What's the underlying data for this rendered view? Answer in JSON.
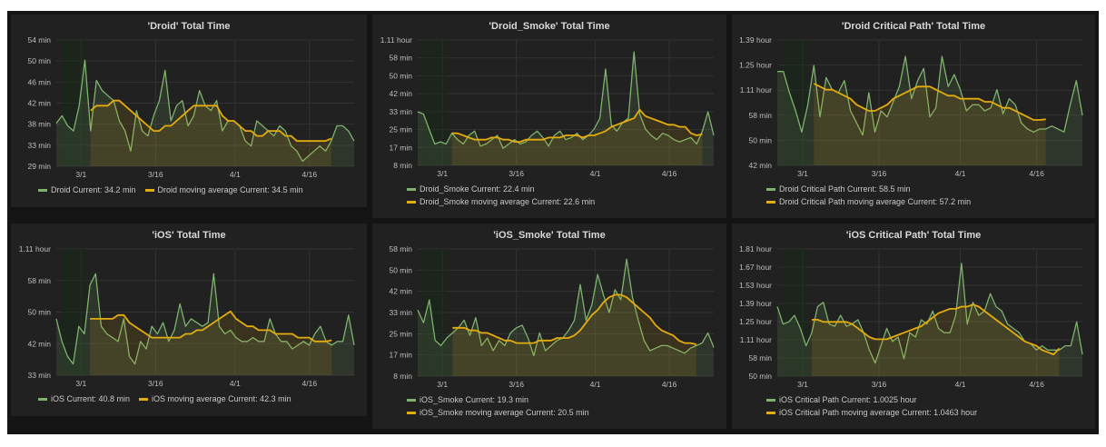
{
  "colors": {
    "series": "#7eb26d",
    "moving_average": "#e5ac0e"
  },
  "chart_data": [
    {
      "type": "line",
      "title": "'Droid' Total Time",
      "yticks": [
        "54 min",
        "50 min",
        "46 min",
        "42 min",
        "38 min",
        "33 min",
        "29 min"
      ],
      "ylim": [
        29,
        54
      ],
      "xticks": [
        {
          "label": "3/1",
          "x": 5
        },
        {
          "label": "3/16",
          "x": 20
        },
        {
          "label": "4/1",
          "x": 36
        },
        {
          "label": "4/16",
          "x": 51
        }
      ],
      "xlim": [
        0,
        60
      ],
      "series": [
        {
          "name": "Droid",
          "values": [
            37.5,
            39,
            37,
            36,
            41,
            50,
            36,
            46,
            44,
            43,
            42,
            38,
            36,
            32,
            40,
            36,
            35,
            39,
            42,
            48,
            38,
            41,
            42,
            37,
            39,
            44,
            41,
            40,
            42,
            36,
            38,
            38,
            37,
            34,
            33,
            38,
            37,
            36,
            35,
            37,
            36,
            33,
            32,
            30,
            31,
            32,
            33,
            32,
            34,
            37,
            37,
            36,
            34
          ]
        },
        {
          "name": "Droid moving average",
          "start_index": 6,
          "values": [
            40,
            41,
            41,
            41,
            42,
            42,
            41,
            40,
            39,
            38,
            37,
            36,
            36,
            37,
            37,
            38,
            39,
            40,
            41,
            41,
            41,
            41,
            41,
            39,
            38,
            38,
            37,
            36,
            36,
            35,
            35,
            36,
            36,
            36,
            35,
            35,
            34,
            34,
            34,
            34,
            34,
            34,
            34.5
          ]
        }
      ],
      "legend": [
        "Droid  Current: 34.2 min",
        "Droid moving average  Current: 34.5 min"
      ]
    },
    {
      "type": "line",
      "title": "'Droid_Smoke' Total Time",
      "yticks": [
        "1.11 hour",
        "58 min",
        "50 min",
        "42 min",
        "33 min",
        "25 min",
        "17 min",
        "8 min"
      ],
      "ylim": [
        8,
        66.6
      ],
      "xticks": [
        {
          "label": "3/1",
          "x": 5
        },
        {
          "label": "3/16",
          "x": 20
        },
        {
          "label": "4/1",
          "x": 36
        },
        {
          "label": "4/16",
          "x": 51
        }
      ],
      "xlim": [
        0,
        60
      ],
      "series": [
        {
          "name": "Droid_Smoke",
          "values": [
            33,
            32,
            25,
            18,
            19,
            18,
            23,
            20,
            18,
            22,
            24,
            17,
            18,
            20,
            22,
            16,
            18,
            20,
            18,
            19,
            22,
            24,
            21,
            17,
            22,
            24,
            20,
            21,
            23,
            20,
            22,
            25,
            30,
            53,
            27,
            24,
            28,
            30,
            61,
            32,
            25,
            22,
            20,
            23,
            22,
            20,
            19,
            20,
            21,
            18,
            24,
            33,
            22
          ]
        },
        {
          "name": "Droid_Smoke moving average",
          "start_index": 6,
          "values": [
            23,
            23,
            22,
            21,
            20,
            20,
            20,
            21,
            21,
            20,
            20,
            19,
            19,
            20,
            20,
            20,
            20,
            21,
            21,
            21,
            22,
            22,
            22,
            21,
            22,
            22,
            23,
            24,
            26,
            27,
            28,
            29,
            30,
            34,
            31,
            30,
            29,
            28,
            27,
            27,
            26,
            26,
            23,
            22,
            22.6
          ]
        }
      ],
      "legend": [
        "Droid_Smoke  Current: 22.4 min",
        "Droid_Smoke moving average  Current: 22.6 min"
      ]
    },
    {
      "type": "line",
      "title": "'Droid Critical Path' Total Time",
      "yticks": [
        "1.39 hour",
        "1.25 hour",
        "1.11 hour",
        "58 min",
        "50 min",
        "42 min"
      ],
      "ylim": [
        42,
        83.4
      ],
      "xticks": [
        {
          "label": "3/1",
          "x": 5
        },
        {
          "label": "3/16",
          "x": 20
        },
        {
          "label": "4/1",
          "x": 36
        },
        {
          "label": "4/16",
          "x": 51
        }
      ],
      "xlim": [
        0,
        60
      ],
      "series": [
        {
          "name": "Droid Critical Path",
          "values": [
            73,
            73,
            66,
            60,
            53,
            62,
            75,
            58,
            71,
            67,
            66,
            70,
            60,
            56,
            52,
            66,
            53,
            60,
            58,
            63,
            68,
            78,
            64,
            70,
            74,
            58,
            61,
            78,
            68,
            72,
            67,
            60,
            62,
            62,
            60,
            61,
            67,
            59,
            64,
            62,
            56,
            54,
            53,
            54,
            54,
            55,
            54,
            53,
            62,
            70,
            58.5
          ]
        },
        {
          "name": "Droid Critical Path moving average",
          "start_index": 6,
          "values": [
            69,
            68,
            67,
            67,
            66,
            65,
            64,
            62,
            61,
            60,
            60,
            61,
            62,
            64,
            65,
            66,
            67,
            68,
            68,
            68,
            67,
            66,
            65,
            65,
            64,
            64,
            64,
            64,
            63,
            63,
            62,
            61,
            61,
            60,
            59,
            58,
            57,
            57,
            57.2
          ]
        }
      ],
      "legend": [
        "Droid Critical Path  Current: 58.5 min",
        "Droid Critical Path moving average  Current: 57.2 min"
      ]
    },
    {
      "type": "line",
      "title": "'iOS' Total Time",
      "yticks": [
        "1.11 hour",
        "58 min",
        "50 min",
        "42 min",
        "33 min"
      ],
      "ylim": [
        33,
        66.6
      ],
      "xticks": [
        {
          "label": "3/1",
          "x": 5
        },
        {
          "label": "3/16",
          "x": 20
        },
        {
          "label": "4/1",
          "x": 36
        },
        {
          "label": "4/16",
          "x": 51
        }
      ],
      "xlim": [
        0,
        60
      ],
      "series": [
        {
          "name": "iOS",
          "values": [
            48,
            42,
            38,
            36,
            46,
            44,
            57,
            60,
            46,
            44,
            43,
            42,
            48,
            38,
            36,
            42,
            40,
            46,
            44,
            47,
            42,
            45,
            52,
            46,
            48,
            47,
            46,
            47,
            60,
            46,
            44,
            45,
            43,
            42,
            42,
            43,
            42,
            42,
            48,
            44,
            42,
            42,
            40,
            41,
            42,
            41,
            44,
            46,
            42,
            41,
            42,
            42,
            49,
            41
          ]
        },
        {
          "name": "iOS moving average",
          "start_index": 6,
          "values": [
            48,
            48,
            48,
            48,
            48,
            49,
            49,
            47,
            46,
            45,
            44,
            43,
            43,
            43,
            43,
            43,
            43,
            44,
            44,
            45,
            45,
            46,
            47,
            48,
            49,
            50,
            48,
            47,
            46,
            46,
            45,
            45,
            45,
            44,
            44,
            44,
            44,
            43,
            43,
            43,
            42,
            42,
            42,
            42.3
          ]
        }
      ],
      "legend": [
        "iOS  Current: 40.8 min",
        "iOS moving average  Current: 42.3 min"
      ]
    },
    {
      "type": "line",
      "title": "'iOS_Smoke' Total Time",
      "yticks": [
        "58 min",
        "50 min",
        "42 min",
        "33 min",
        "25 min",
        "17 min",
        "8 min"
      ],
      "ylim": [
        8,
        58
      ],
      "xticks": [
        {
          "label": "3/1",
          "x": 5
        },
        {
          "label": "3/16",
          "x": 20
        },
        {
          "label": "4/1",
          "x": 36
        },
        {
          "label": "4/16",
          "x": 51
        }
      ],
      "xlim": [
        0,
        60
      ],
      "series": [
        {
          "name": "iOS_Smoke",
          "values": [
            34,
            29,
            38,
            22,
            20,
            23,
            25,
            27,
            30,
            24,
            31,
            20,
            23,
            18,
            22,
            20,
            25,
            27,
            28,
            23,
            16,
            25,
            18,
            20,
            22,
            23,
            26,
            30,
            44,
            30,
            36,
            48,
            40,
            33,
            42,
            38,
            54,
            39,
            30,
            22,
            18,
            19,
            20,
            20,
            19,
            18,
            17,
            19,
            20,
            21,
            25,
            19.3
          ]
        },
        {
          "name": "iOS_Smoke moving average",
          "start_index": 6,
          "values": [
            27,
            27,
            27,
            26,
            26,
            25,
            25,
            24,
            23,
            22,
            22,
            21,
            21,
            21,
            21,
            22,
            22,
            22,
            23,
            23,
            23,
            24,
            26,
            29,
            32,
            34,
            37,
            39,
            40,
            40,
            39,
            37,
            35,
            33,
            31,
            28,
            26,
            25,
            24,
            22,
            21,
            21,
            20.5
          ]
        }
      ],
      "legend": [
        "iOS_Smoke  Current: 19.3 min",
        "iOS_Smoke moving average  Current: 20.5 min"
      ]
    },
    {
      "type": "line",
      "title": "'iOS Critical Path' Total Time",
      "yticks": [
        "1.81 hour",
        "1.67 hour",
        "1.53 hour",
        "1.39 hour",
        "1.25 hour",
        "1.11 hour",
        "58 min",
        "50 min"
      ],
      "ylim": [
        50,
        108.6
      ],
      "xticks": [
        {
          "label": "3/1",
          "x": 5
        },
        {
          "label": "3/16",
          "x": 20
        },
        {
          "label": "4/1",
          "x": 36
        },
        {
          "label": "4/16",
          "x": 51
        }
      ],
      "xlim": [
        0,
        60
      ],
      "series": [
        {
          "name": "iOS Critical Path",
          "values": [
            82,
            74,
            75,
            78,
            72,
            64,
            70,
            82,
            84,
            74,
            73,
            78,
            73,
            74,
            76,
            70,
            62,
            56,
            64,
            72,
            66,
            68,
            58,
            70,
            68,
            76,
            74,
            80,
            72,
            70,
            70,
            78,
            102,
            74,
            84,
            78,
            80,
            88,
            82,
            80,
            74,
            72,
            70,
            66,
            65,
            62,
            64,
            62,
            62,
            62,
            64,
            64,
            75,
            60
          ]
        },
        {
          "name": "iOS Critical Path moving average",
          "start_index": 6,
          "values": [
            76,
            76,
            75,
            75,
            75,
            75,
            75,
            74,
            72,
            70,
            68,
            67,
            67,
            67,
            68,
            69,
            70,
            71,
            72,
            73,
            75,
            77,
            79,
            80,
            81,
            81,
            82,
            82,
            83,
            82,
            80,
            78,
            76,
            74,
            72,
            70,
            68,
            66,
            65,
            64,
            62,
            61,
            60,
            62.8
          ]
        }
      ],
      "legend": [
        "iOS Critical Path  Current: 1.0025 hour",
        "iOS Critical Path moving average  Current: 1.0463 hour"
      ]
    }
  ]
}
